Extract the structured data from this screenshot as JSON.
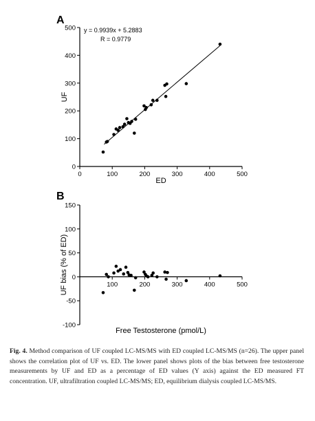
{
  "figure": {
    "caption_label": "Fig. 4.",
    "caption_text": "Method comparison of UF coupled LC-MS/MS with ED coupled LC-MS/MS (n=26). The upper panel shows the correlation plot of UF vs. ED. The lower panel shows plots of the bias between free testosterone measurements by UF and ED as a percentage of ED values (Y axis) against the ED measured FT concentration. UF, ultrafiltration coupled LC-MS/MS; ED, equilibrium dialysis coupled LC-MS/MS.",
    "shared_xlabel": "Free Testosterone (pmol/L)"
  },
  "chart_data": [
    {
      "panel_label": "A",
      "type": "scatter",
      "xlabel": "ED",
      "ylabel": "UF",
      "xlim": [
        0,
        500
      ],
      "ylim": [
        0,
        500
      ],
      "xticks": [
        0,
        100,
        200,
        300,
        400,
        500
      ],
      "yticks": [
        0,
        100,
        200,
        300,
        400,
        500
      ],
      "grid": false,
      "annotations": [
        "y = 0.9939x + 5.2883",
        "R = 0.9779"
      ],
      "regression": {
        "slope": 0.9939,
        "intercept": 5.2883,
        "x_range": [
          75,
          432
        ]
      },
      "points": [
        {
          "x": 72,
          "y": 52
        },
        {
          "x": 82,
          "y": 88
        },
        {
          "x": 85,
          "y": 90
        },
        {
          "x": 105,
          "y": 115
        },
        {
          "x": 112,
          "y": 135
        },
        {
          "x": 118,
          "y": 130
        },
        {
          "x": 123,
          "y": 140
        },
        {
          "x": 133,
          "y": 143
        },
        {
          "x": 138,
          "y": 152
        },
        {
          "x": 145,
          "y": 172
        },
        {
          "x": 150,
          "y": 158
        },
        {
          "x": 155,
          "y": 155
        },
        {
          "x": 160,
          "y": 162
        },
        {
          "x": 168,
          "y": 120
        },
        {
          "x": 172,
          "y": 170
        },
        {
          "x": 198,
          "y": 218
        },
        {
          "x": 202,
          "y": 205
        },
        {
          "x": 205,
          "y": 212
        },
        {
          "x": 220,
          "y": 222
        },
        {
          "x": 225,
          "y": 238
        },
        {
          "x": 238,
          "y": 238
        },
        {
          "x": 262,
          "y": 292
        },
        {
          "x": 268,
          "y": 297
        },
        {
          "x": 265,
          "y": 252
        },
        {
          "x": 328,
          "y": 298
        },
        {
          "x": 432,
          "y": 440
        }
      ]
    },
    {
      "panel_label": "B",
      "type": "scatter",
      "xlabel": "Free Testosterone (pmol/L)",
      "ylabel": "UF bias (% of ED)",
      "xlim": [
        0,
        500
      ],
      "ylim": [
        -100,
        150
      ],
      "xticks": [
        100,
        200,
        300,
        400,
        500
      ],
      "yticks": [
        -100,
        -50,
        0,
        50,
        100,
        150
      ],
      "grid": false,
      "zero_line": true,
      "points": [
        {
          "x": 72,
          "y": -33
        },
        {
          "x": 82,
          "y": 5
        },
        {
          "x": 88,
          "y": 0
        },
        {
          "x": 105,
          "y": 8
        },
        {
          "x": 112,
          "y": 22
        },
        {
          "x": 118,
          "y": 12
        },
        {
          "x": 125,
          "y": 15
        },
        {
          "x": 135,
          "y": 6
        },
        {
          "x": 142,
          "y": 20
        },
        {
          "x": 148,
          "y": 9
        },
        {
          "x": 152,
          "y": 4
        },
        {
          "x": 158,
          "y": 3
        },
        {
          "x": 168,
          "y": -28
        },
        {
          "x": 172,
          "y": -2
        },
        {
          "x": 198,
          "y": 10
        },
        {
          "x": 202,
          "y": 5
        },
        {
          "x": 205,
          "y": 2
        },
        {
          "x": 210,
          "y": 0
        },
        {
          "x": 222,
          "y": 3
        },
        {
          "x": 226,
          "y": 8
        },
        {
          "x": 238,
          "y": 0
        },
        {
          "x": 262,
          "y": 10
        },
        {
          "x": 266,
          "y": -5
        },
        {
          "x": 270,
          "y": 9
        },
        {
          "x": 328,
          "y": -8
        },
        {
          "x": 432,
          "y": 2
        }
      ]
    }
  ]
}
